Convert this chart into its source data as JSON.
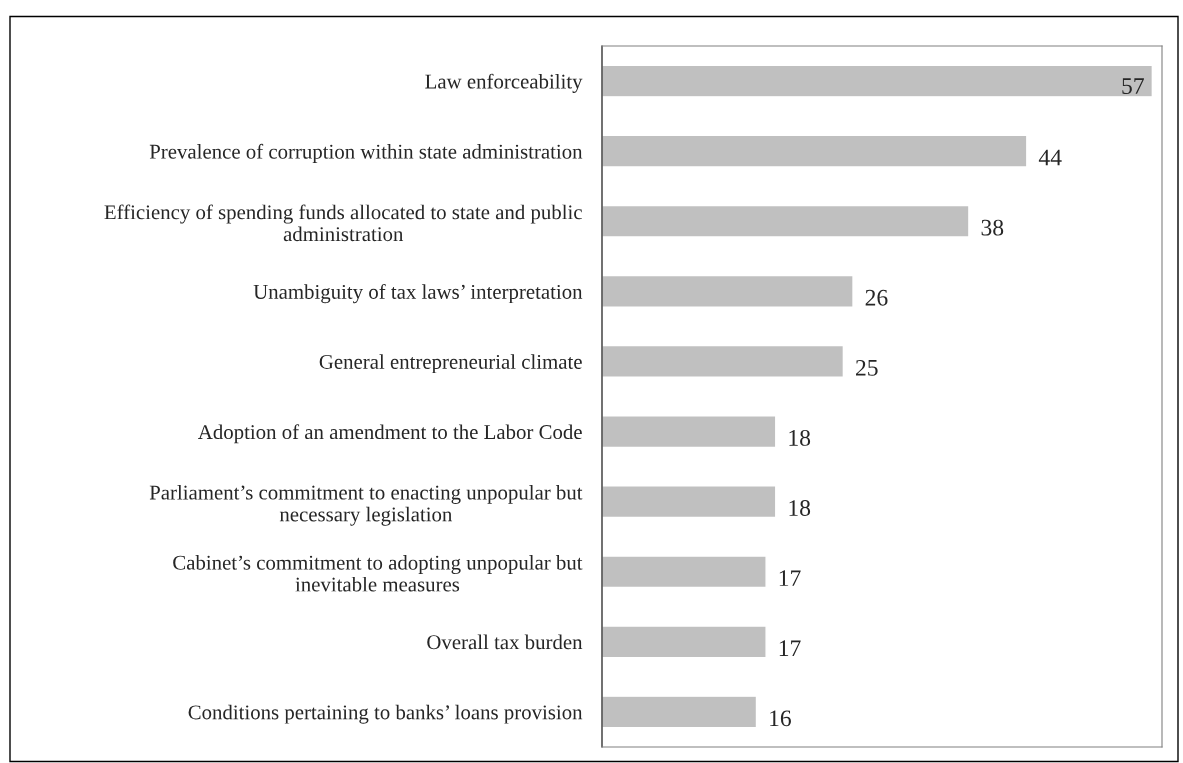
{
  "chart_data": {
    "type": "bar",
    "orientation": "horizontal",
    "data_labels": true,
    "tick_labels": "y",
    "grid": false,
    "legend": false,
    "color": "#c0c0c0",
    "xlim": [
      0,
      58
    ],
    "categories": [
      "Law enforceability",
      "Prevalence of corruption within state administration",
      "Efficiency of spending funds allocated to state and public\nadministration",
      "Unambiguity of tax laws’ interpretation",
      "General entrepreneurial climate",
      "Adoption of an amendment to the Labor Code",
      "Parliament’s commitment to enacting unpopular but\nnecessary legislation",
      "Cabinet’s commitment to adopting unpopular but\ninevitable measures",
      "Overall tax burden",
      "Conditions pertaining to banks’ loans provision"
    ],
    "values": [
      57,
      44,
      38,
      26,
      25,
      18,
      18,
      17,
      17,
      16
    ]
  }
}
